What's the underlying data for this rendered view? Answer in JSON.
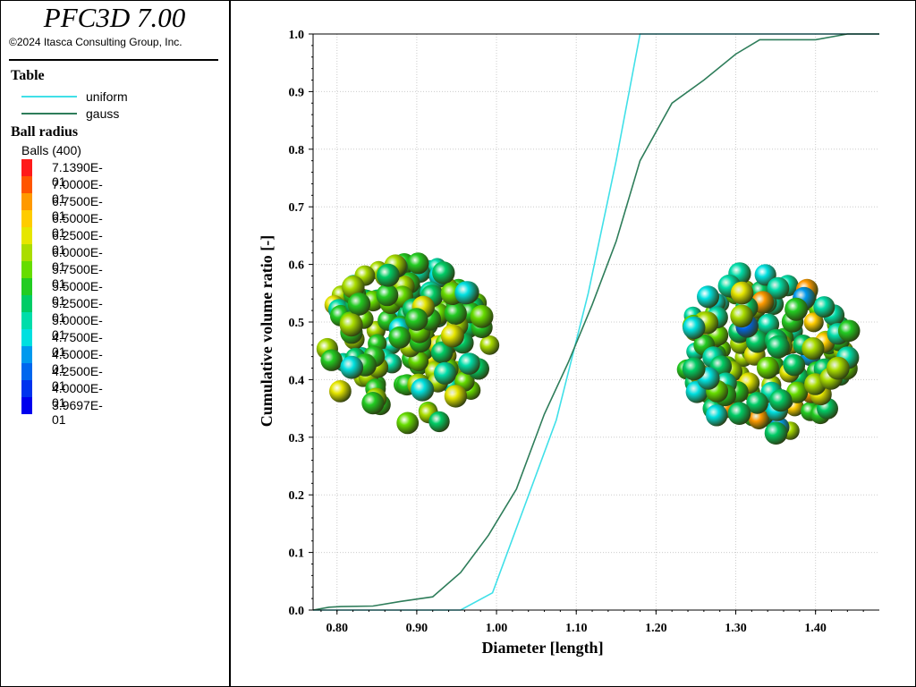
{
  "header": {
    "app_title": "PFC3D 7.00",
    "copyright": "©2024 Itasca Consulting Group, Inc."
  },
  "table_legend": {
    "title": "Table",
    "entries": [
      {
        "label": "uniform",
        "color": "#40e0e8"
      },
      {
        "label": "gauss",
        "color": "#2e7d5a"
      }
    ]
  },
  "ball_legend": {
    "title": "Ball radius",
    "subtitle": "Balls (400)",
    "items": [
      {
        "label": "7.1390E-01",
        "color": "#ff1a1a"
      },
      {
        "label": "7.0000E-01",
        "color": "#ff5500"
      },
      {
        "label": "6.7500E-01",
        "color": "#ff9900"
      },
      {
        "label": "6.5000E-01",
        "color": "#ffcc00"
      },
      {
        "label": "6.2500E-01",
        "color": "#e6e600"
      },
      {
        "label": "6.0000E-01",
        "color": "#aadd00"
      },
      {
        "label": "5.7500E-01",
        "color": "#66dd00"
      },
      {
        "label": "5.5000E-01",
        "color": "#22cc22"
      },
      {
        "label": "5.2500E-01",
        "color": "#00cc66"
      },
      {
        "label": "5.0000E-01",
        "color": "#00ddaa"
      },
      {
        "label": "4.7500E-01",
        "color": "#00e0e0"
      },
      {
        "label": "4.5000E-01",
        "color": "#0099ee"
      },
      {
        "label": "4.2500E-01",
        "color": "#0066ee"
      },
      {
        "label": "4.0000E-01",
        "color": "#0033ee"
      },
      {
        "label": "3.9697E-01",
        "color": "#0000ee"
      }
    ]
  },
  "chart_data": {
    "type": "line",
    "xlabel": "Diameter [length]",
    "ylabel": "Cumulative volume ratio [-]",
    "xlim": [
      0.77,
      1.48
    ],
    "ylim": [
      0.0,
      1.0
    ],
    "x_ticks": [
      "0.80",
      "0.90",
      "1.00",
      "1.10",
      "1.20",
      "1.30",
      "1.40"
    ],
    "x_tick_values": [
      0.8,
      0.9,
      1.0,
      1.1,
      1.2,
      1.3,
      1.4
    ],
    "y_ticks": [
      "0.0",
      "0.1",
      "0.2",
      "0.3",
      "0.4",
      "0.5",
      "0.6",
      "0.7",
      "0.8",
      "0.9",
      "1.0"
    ],
    "y_tick_values": [
      0.0,
      0.1,
      0.2,
      0.3,
      0.4,
      0.5,
      0.6,
      0.7,
      0.8,
      0.9,
      1.0
    ],
    "grid": true,
    "series": [
      {
        "name": "uniform",
        "color": "#40e0e8",
        "x": [
          0.77,
          0.955,
          0.995,
          1.035,
          1.075,
          1.115,
          1.15,
          1.18,
          1.48
        ],
        "y": [
          0.0,
          0.0,
          0.03,
          0.18,
          0.33,
          0.55,
          0.78,
          1.0,
          1.0
        ]
      },
      {
        "name": "gauss",
        "color": "#2e7d5a",
        "x": [
          0.77,
          0.79,
          0.805,
          0.845,
          0.88,
          0.92,
          0.955,
          0.99,
          1.025,
          1.06,
          1.09,
          1.12,
          1.15,
          1.18,
          1.22,
          1.26,
          1.3,
          1.33,
          1.36,
          1.4,
          1.44,
          1.48
        ],
        "y": [
          0.0,
          0.005,
          0.006,
          0.007,
          0.015,
          0.023,
          0.065,
          0.13,
          0.21,
          0.34,
          0.43,
          0.53,
          0.64,
          0.78,
          0.88,
          0.92,
          0.965,
          0.99,
          0.99,
          0.99,
          1.0,
          1.0
        ]
      }
    ],
    "ball_clusters": [
      {
        "name": "uniform-ball-cluster",
        "cx": 0.888,
        "cy": 0.46
      },
      {
        "name": "gauss-ball-cluster",
        "cx": 1.343,
        "cy": 0.45
      }
    ]
  }
}
